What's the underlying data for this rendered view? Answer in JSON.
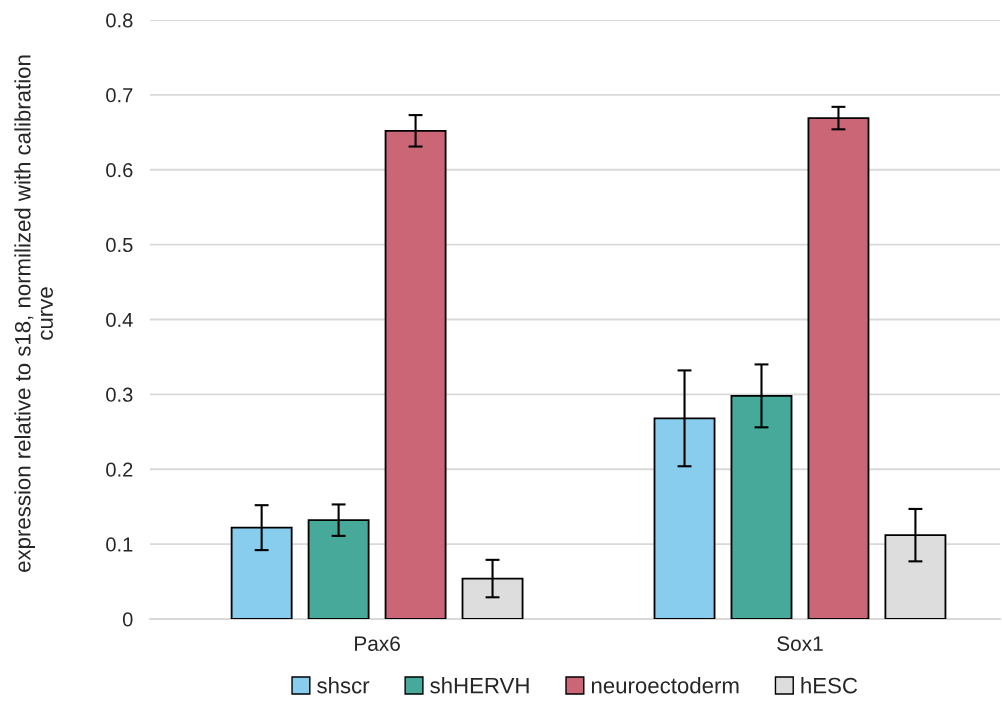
{
  "chart_data": {
    "type": "bar",
    "ylabel": "expression relative to s18, normilized with calibration\ncurve",
    "categories": [
      "Pax6",
      "Sox1"
    ],
    "series": [
      {
        "name": "shscr",
        "color": "#89cdee",
        "values": [
          0.122,
          0.268
        ],
        "errors": [
          0.03,
          0.064
        ]
      },
      {
        "name": "shHERVH",
        "color": "#46a999",
        "values": [
          0.132,
          0.298
        ],
        "errors": [
          0.021,
          0.042
        ]
      },
      {
        "name": "neuroectoderm",
        "color": "#cb6677",
        "values": [
          0.652,
          0.669
        ],
        "errors": [
          0.021,
          0.015
        ]
      },
      {
        "name": "hESC",
        "color": "#dddddd",
        "values": [
          0.054,
          0.112
        ],
        "errors": [
          0.025,
          0.035
        ]
      }
    ],
    "ylim": [
      0,
      0.8
    ],
    "yticks": [
      0,
      0.1,
      0.2,
      0.3,
      0.4,
      0.5,
      0.6,
      0.7,
      0.8
    ],
    "grid": "y",
    "legend": "bottom"
  }
}
